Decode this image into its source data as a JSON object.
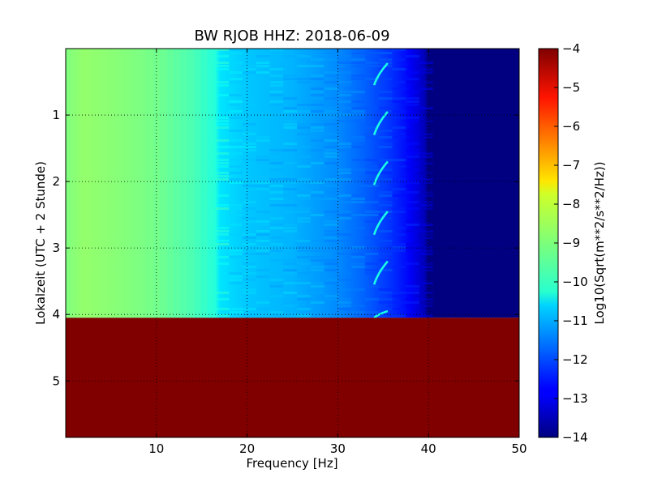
{
  "chart_data": {
    "type": "heatmap",
    "title": "BW RJOB HHZ: 2018-06-09",
    "xlabel": "Frequency [Hz]",
    "ylabel": "Lokalzeit (UTC + 2 Stunde)",
    "colorbar_label": "Log10(Sqrt(m**2/s**2/Hz))",
    "xlim": [
      0,
      50
    ],
    "ylim": [
      5.85,
      0
    ],
    "y_inverted": true,
    "grid": true,
    "colormap": "jet",
    "color_range": [
      -14,
      -4
    ],
    "x_ticks": [
      10,
      20,
      30,
      40,
      50
    ],
    "x_tick_labels": [
      "10",
      "20",
      "30",
      "40",
      "50"
    ],
    "y_ticks": [
      1,
      2,
      3,
      4,
      5
    ],
    "y_tick_labels": [
      "1",
      "2",
      "3",
      "4",
      "5"
    ],
    "colorbar_ticks": [
      -4,
      -5,
      -6,
      -7,
      -8,
      -9,
      -10,
      -11,
      -12,
      -13,
      -14
    ],
    "colorbar_tick_labels": [
      "−4",
      "−5",
      "−6",
      "−7",
      "−8",
      "−9",
      "−10",
      "−11",
      "−12",
      "−13",
      "−14"
    ],
    "data_end_hour": 4.05,
    "fill_value_after_data": -4,
    "frequency_profile": {
      "frequency_hz": [
        0,
        2,
        5,
        10,
        14,
        16.5,
        17,
        20,
        25,
        30,
        33,
        36,
        38,
        39.5,
        40,
        50
      ],
      "log10_amplitude": [
        -9.0,
        -8.8,
        -8.9,
        -9.1,
        -9.5,
        -9.9,
        -10.5,
        -10.8,
        -11.0,
        -11.4,
        -11.8,
        -12.3,
        -12.8,
        -13.4,
        -14.0,
        -14.0
      ]
    },
    "spectral_line": {
      "frequency_hz_range": [
        34,
        35.5
      ],
      "log10_amplitude": -10.0
    }
  }
}
